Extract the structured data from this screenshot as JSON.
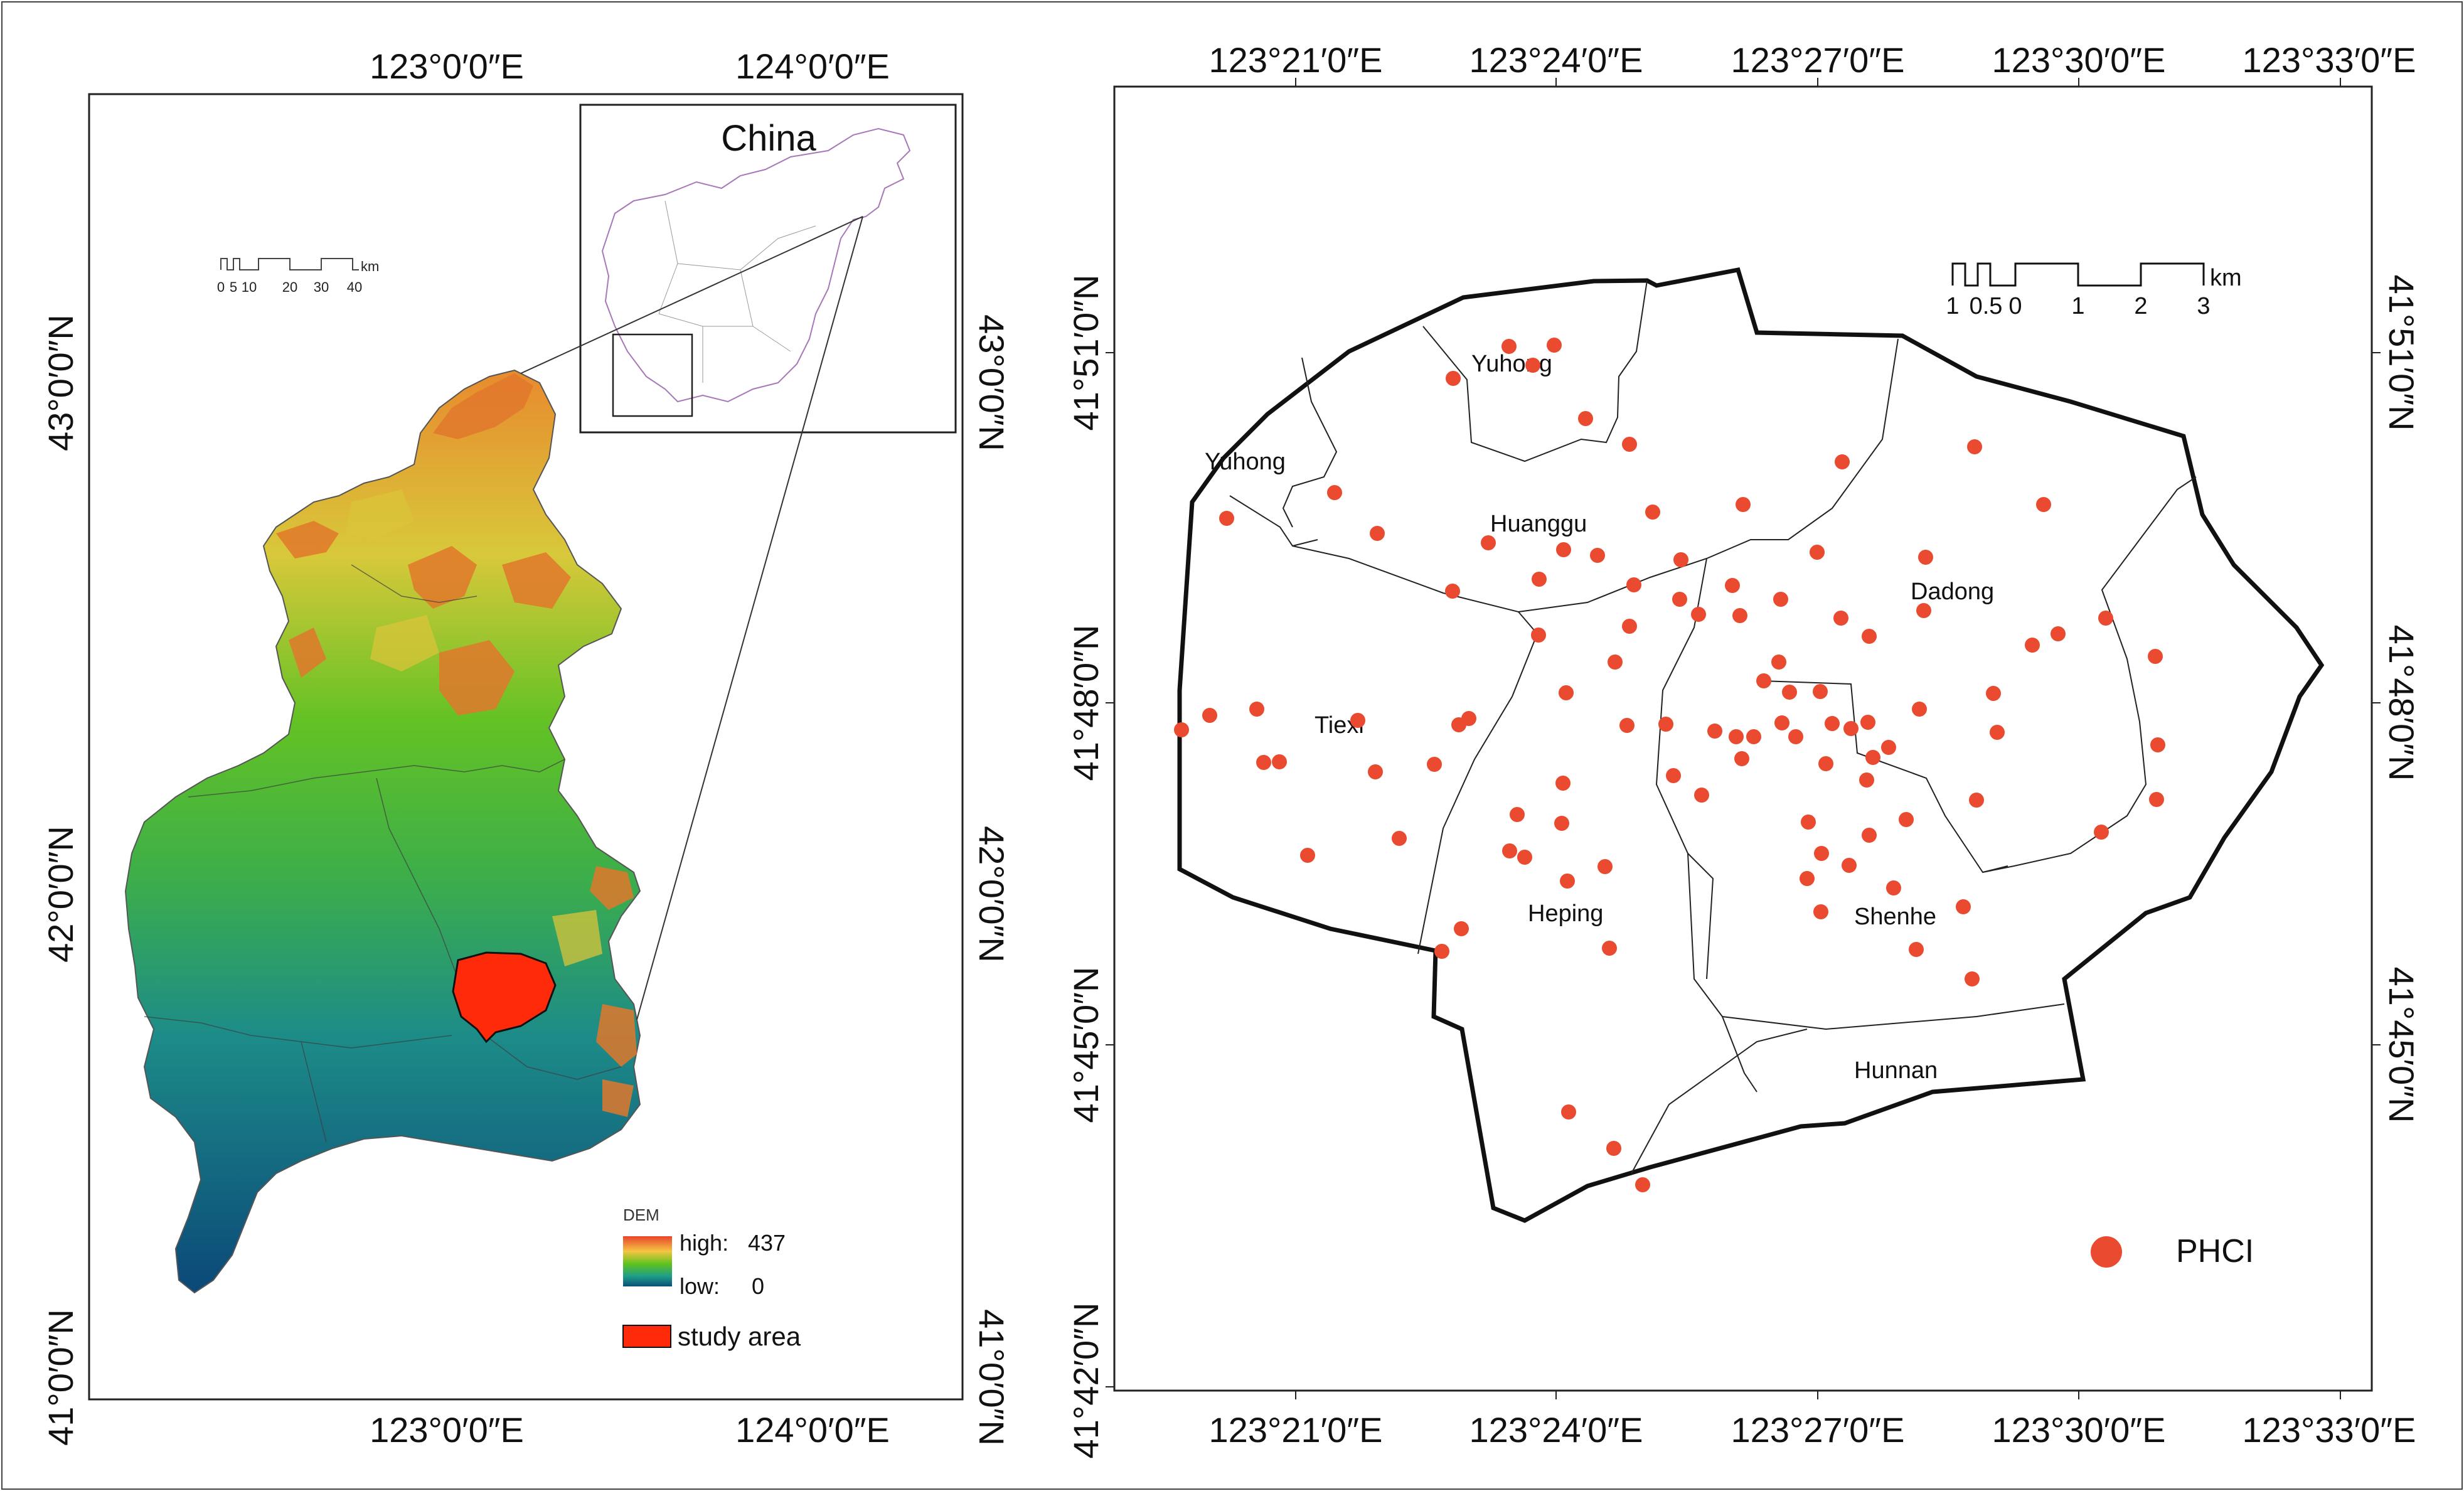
{
  "left_panel": {
    "top_ticks": [
      "123°0′0″E",
      "124°0′0″E"
    ],
    "bottom_ticks": [
      "123°0′0″E",
      "124°0′0″E"
    ],
    "left_ticks": [
      "43°0′0″N",
      "42°0′0″N",
      "41°0′0″N"
    ],
    "right_ticks": [
      "43°0′0″N",
      "42°0′0″N",
      "41°0′0″N"
    ],
    "scalebar": {
      "labels": [
        "0",
        "5",
        "10",
        "20",
        "30",
        "40"
      ],
      "unit": "km"
    },
    "inset": {
      "title": "China"
    },
    "legend": {
      "title": "DEM",
      "high_label": "high:",
      "high_value": "437",
      "low_label": "low:",
      "low_value": "0",
      "study_area_label": "study area",
      "colors": {
        "high": "#e8442a",
        "mid_high": "#f5c542",
        "mid": "#5fc31d",
        "low": "#0a4f7a",
        "study_area": "#ff2a0a"
      }
    }
  },
  "right_panel": {
    "top_ticks": [
      "123°21′0″E",
      "123°24′0″E",
      "123°27′0″E",
      "123°30′0″E",
      "123°33′0″E"
    ],
    "bottom_ticks": [
      "123°21′0″E",
      "123°24′0″E",
      "123°27′0″E",
      "123°30′0″E",
      "123°33′0″E"
    ],
    "left_ticks": [
      "41°51′0″N",
      "41°48′0″N",
      "41°45′0″N",
      "41°42′0″N"
    ],
    "right_ticks": [
      "41°51′0″N",
      "41°48′0″N",
      "41°45′0″N"
    ],
    "districts": [
      "Yuhong",
      "Yuhong",
      "Huanggu",
      "Dadong",
      "Tiexi",
      "Heping",
      "Shenhe",
      "Hunnan"
    ],
    "scalebar": {
      "labels": [
        "1",
        "0.5",
        "0",
        "1",
        "2",
        "3"
      ],
      "unit": "km"
    },
    "legend": {
      "label": "PHCI",
      "color": "#ea4a2f"
    }
  }
}
